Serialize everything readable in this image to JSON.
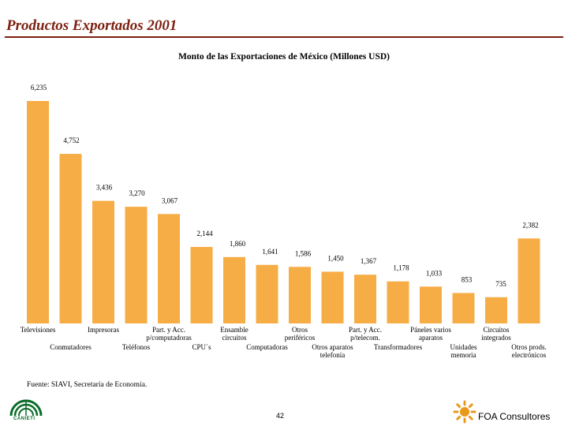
{
  "header": {
    "title": "Productos Exportados 2001"
  },
  "chart_data": {
    "type": "bar",
    "title": "Monto de las Exportaciones de México (Millones USD)",
    "bar_color": "#f7ad45",
    "categories": [
      "Televisiones",
      "Conmutadores",
      "Impresoras",
      "Teléfonos",
      "Part. y Acc. p/computadoras",
      "CPU´s",
      "Ensamble circuitos",
      "Computadoras",
      "Otros periféricos",
      "Otros aparatos telefonía",
      "Part. y Acc. p/telecom.",
      "Transformadores",
      "Páneles varios aparatos",
      "Unidades memoria",
      "Circuitos integrados",
      "Otros prods. electrónicos"
    ],
    "values": [
      6235,
      4752,
      3436,
      3270,
      3067,
      2144,
      1860,
      1641,
      1586,
      1450,
      1367,
      1178,
      1033,
      853,
      735,
      2382
    ],
    "value_labels": [
      "6,235",
      "4,752",
      "3,436",
      "3,270",
      "3,067",
      "2,144",
      "1,860",
      "1,641",
      "1,586",
      "1,450",
      "1,367",
      "1,178",
      "1,033",
      "853",
      "735",
      "2,382"
    ],
    "category_label_lines": [
      [
        "Televisiones"
      ],
      [
        "Conmutadores"
      ],
      [
        "Impresoras"
      ],
      [
        "Teléfonos"
      ],
      [
        "Part. y Acc.",
        "p/computadoras"
      ],
      [
        "CPU´s"
      ],
      [
        "Ensamble",
        "circuitos"
      ],
      [
        "Computadoras"
      ],
      [
        "Otros",
        "periféricos"
      ],
      [
        "Otros aparatos",
        "telefonía"
      ],
      [
        "Part. y Acc.",
        "p/telecom."
      ],
      [
        "Transformadores"
      ],
      [
        "Páneles varios",
        "aparatos"
      ],
      [
        "Unidades",
        "memoria"
      ],
      [
        "Circuitos",
        "integrados"
      ],
      [
        "Otros prods.",
        "electrónicos"
      ]
    ]
  },
  "footer": {
    "source": "Fuente: SIAVI, Secretaría de Economía.",
    "page_number": "42",
    "left_logo_text": "CANIETI",
    "right_logo_text": "FOA Consultores"
  }
}
